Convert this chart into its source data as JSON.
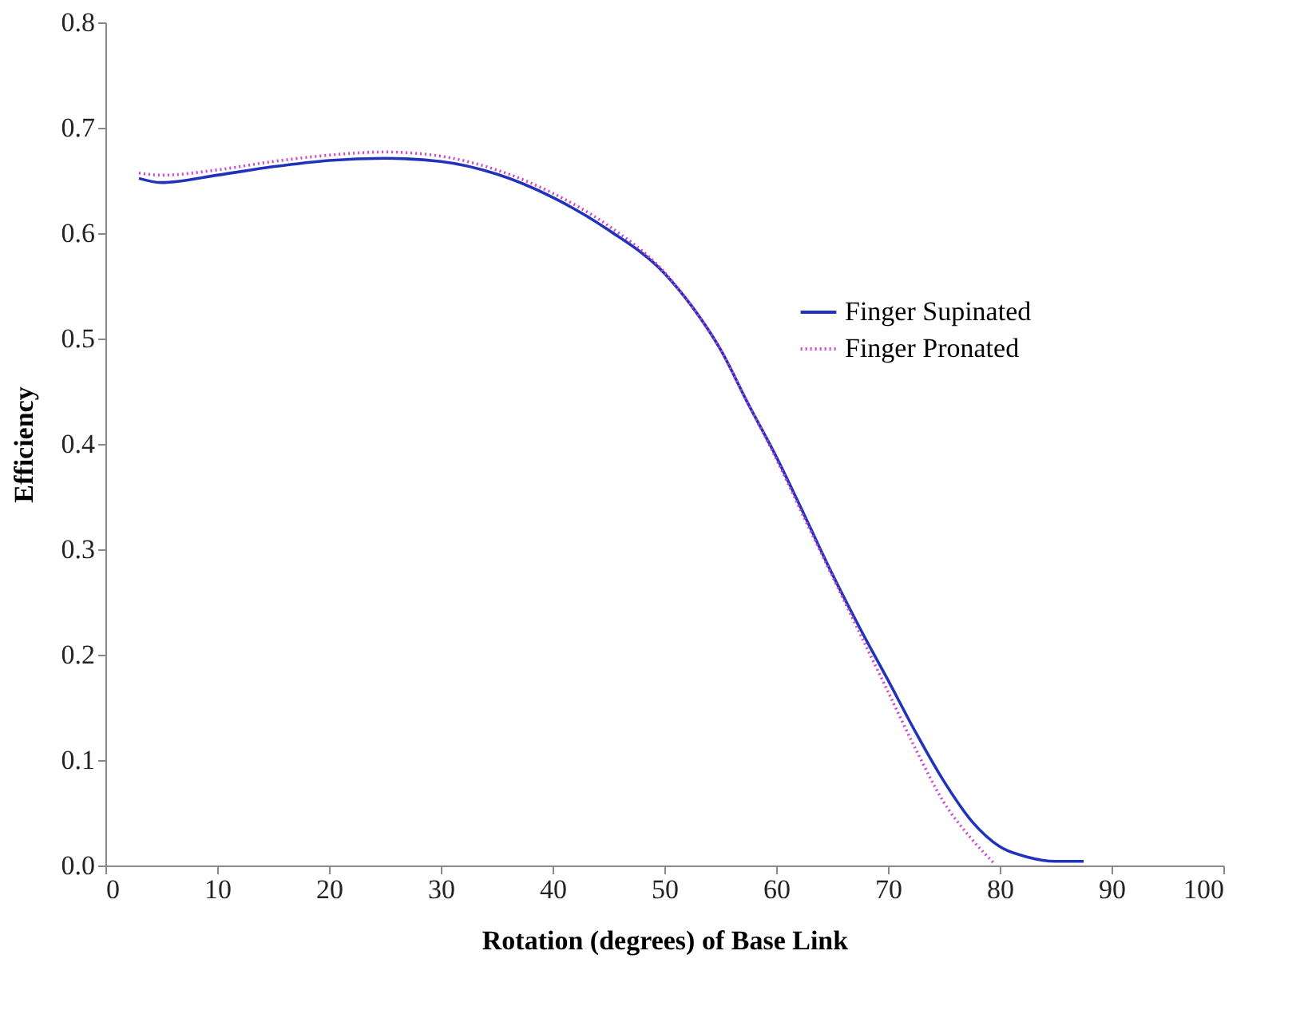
{
  "chart_data": {
    "type": "line",
    "xlabel": "Rotation (degrees) of Base Link",
    "ylabel": "Efficiency",
    "xlim": [
      0,
      100
    ],
    "xticks": [
      0,
      10,
      20,
      30,
      40,
      50,
      60,
      70,
      80,
      90,
      100
    ],
    "ylim": [
      0,
      0.8
    ],
    "yticks": [
      {
        "value": 0,
        "label": "0.0"
      },
      0.1,
      0.2,
      0.3,
      0.4,
      0.5,
      0.6,
      0.7,
      0.8
    ],
    "grid": false,
    "legend": "right",
    "marker": "none",
    "series": [
      {
        "name": "Finger Supinated",
        "color": "#2233bb",
        "line_style": "solid",
        "x": [
          3,
          5,
          10,
          15,
          20,
          25,
          30,
          35,
          40,
          45,
          50,
          52.5,
          55,
          57.5,
          60,
          62.5,
          65,
          67.5,
          70,
          72.5,
          75,
          77.5,
          80,
          82.5,
          85,
          87.5
        ],
        "values": [
          0.652,
          0.648,
          0.655,
          0.663,
          0.669,
          0.671,
          0.668,
          0.656,
          0.634,
          0.603,
          0.562,
          0.53,
          0.49,
          0.438,
          0.388,
          0.333,
          0.277,
          0.225,
          0.176,
          0.126,
          0.08,
          0.042,
          0.018,
          0.008,
          0.004,
          0.004
        ]
      },
      {
        "name": "Finger Pronated",
        "color": "#cc44cc",
        "line_style": "dotted",
        "x": [
          3,
          5,
          10,
          15,
          20,
          25,
          30,
          35,
          40,
          45,
          50,
          52.5,
          55,
          57.5,
          60,
          62.5,
          65,
          67.5,
          70,
          72.5,
          75,
          77.5,
          79.5
        ],
        "values": [
          0.657,
          0.655,
          0.66,
          0.668,
          0.674,
          0.677,
          0.673,
          0.66,
          0.638,
          0.607,
          0.563,
          0.53,
          0.49,
          0.438,
          0.386,
          0.33,
          0.275,
          0.22,
          0.165,
          0.11,
          0.06,
          0.025,
          0.002
        ]
      }
    ]
  }
}
